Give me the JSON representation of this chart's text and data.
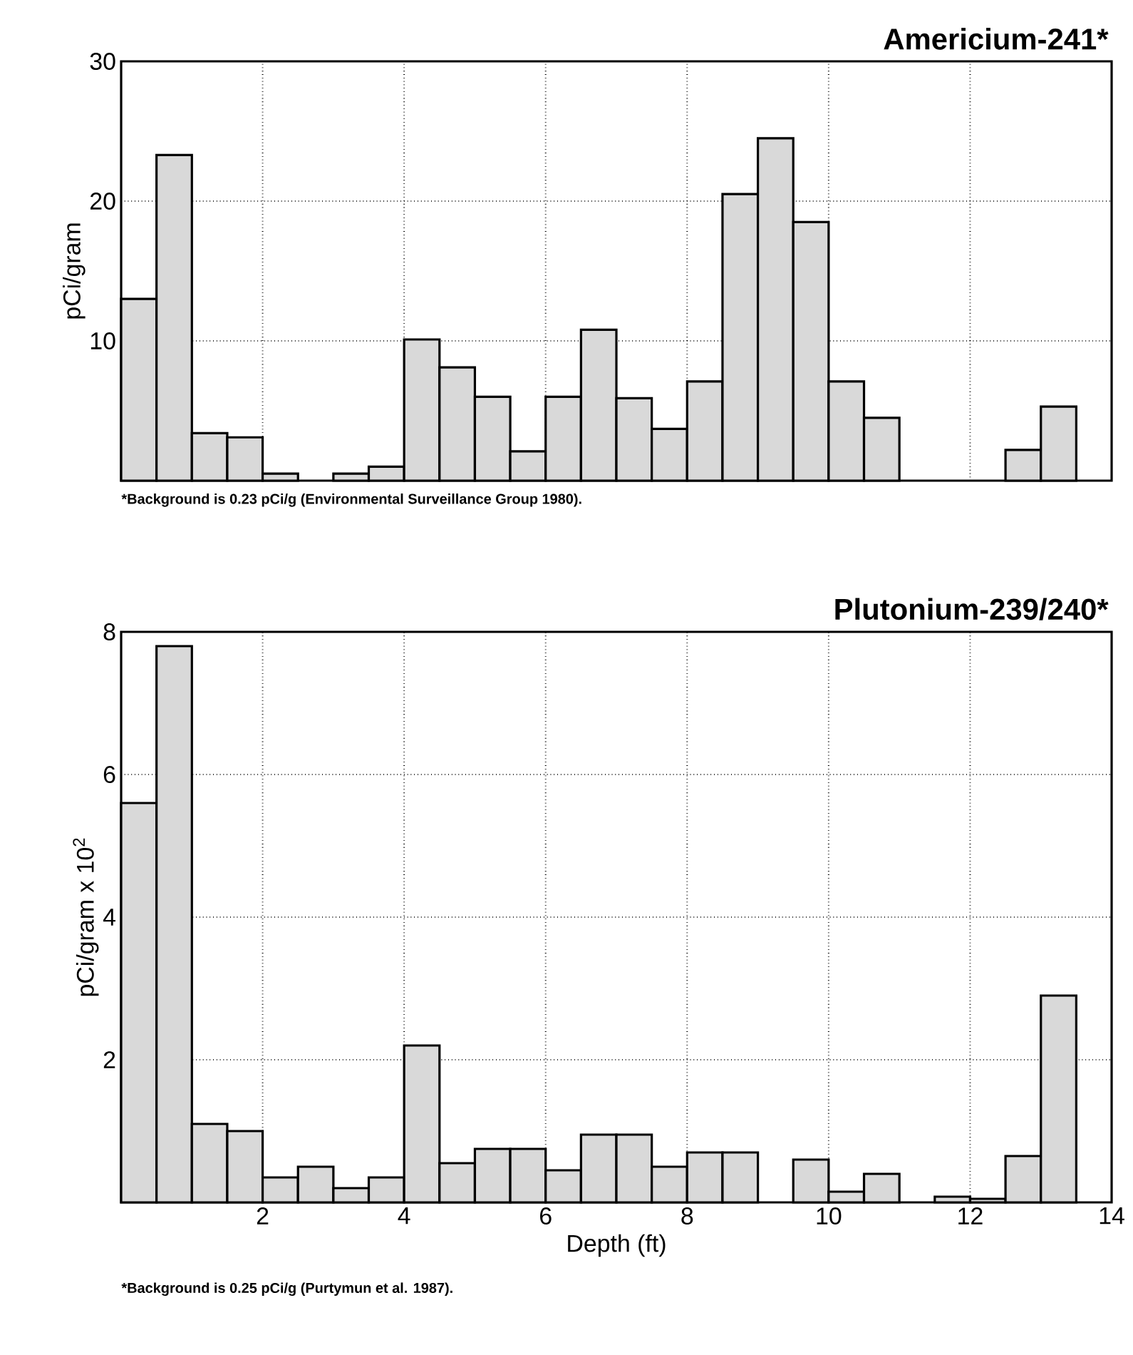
{
  "chart_data": [
    {
      "type": "histogram",
      "title": "Americium-241*",
      "ylabel": "pCi/gram",
      "bins": [
        0,
        0.5,
        1,
        1.5,
        2,
        2.5,
        3,
        3.5,
        4,
        4.5,
        5,
        5.5,
        6,
        6.5,
        7,
        7.5,
        8,
        8.5,
        9,
        9.5,
        10,
        10.5,
        11,
        11.5,
        12,
        12.5,
        13,
        13.5,
        14
      ],
      "values": [
        13,
        23.3,
        3.4,
        3.1,
        0.5,
        null,
        0.5,
        1.0,
        10.1,
        8.1,
        6.0,
        2.1,
        6.0,
        10.8,
        5.9,
        3.7,
        7.1,
        20.5,
        24.5,
        18.5,
        7.1,
        4.5,
        null,
        null,
        null,
        2.2,
        5.3,
        null
      ],
      "color": "#d9d9d9",
      "xlim": [
        0,
        14
      ],
      "ylim": [
        0,
        30
      ],
      "xticks": [
        2,
        4,
        6,
        8,
        10,
        12,
        14
      ],
      "yticks": [
        10,
        20,
        30
      ],
      "grid": true,
      "tick_labels": "y",
      "annotations": [
        "*Background is 0.23 pCi/g (Environmental Surveillance Group 1980)."
      ]
    },
    {
      "type": "histogram",
      "title": "Plutonium-239/240*",
      "xlabel": "Depth (ft)",
      "ylabel": "pCi/gram x 10$^{2}$",
      "bins": [
        0,
        0.5,
        1,
        1.5,
        2,
        2.5,
        3,
        3.5,
        4,
        4.5,
        5,
        5.5,
        6,
        6.5,
        7,
        7.5,
        8,
        8.5,
        9,
        9.5,
        10,
        10.5,
        11,
        11.5,
        12,
        12.5,
        13,
        13.5,
        14
      ],
      "values": [
        5.6,
        7.8,
        1.1,
        1.0,
        0.35,
        0.5,
        0.2,
        0.35,
        2.2,
        0.55,
        0.75,
        0.75,
        0.45,
        0.95,
        0.95,
        0.5,
        0.7,
        0.7,
        null,
        0.6,
        0.15,
        0.4,
        null,
        0.08,
        0.05,
        0.65,
        2.9,
        null
      ],
      "color": "#d9d9d9",
      "xlim": [
        0,
        14
      ],
      "ylim": [
        0,
        8
      ],
      "xticks": [
        2,
        4,
        6,
        8,
        10,
        12,
        14
      ],
      "yticks": [
        2,
        4,
        6,
        8
      ],
      "grid": true,
      "annotations": [
        "*Background is 0.25 pCi/g (Purtymun et al. 1987)."
      ]
    }
  ]
}
